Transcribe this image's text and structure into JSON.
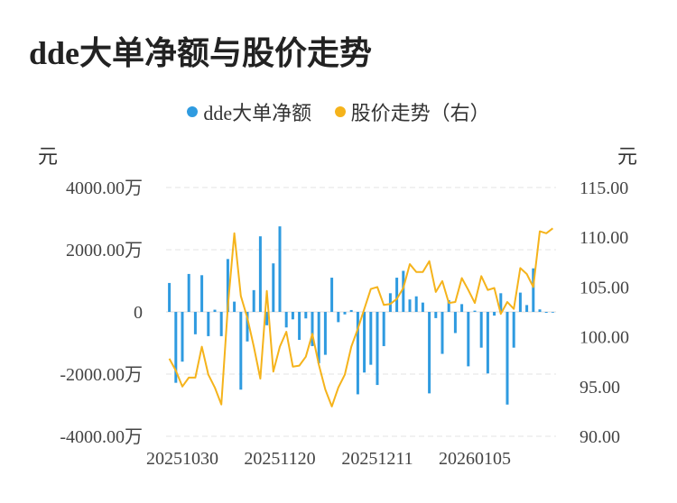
{
  "title": "dde大单净额与股价走势",
  "legend": {
    "items": [
      {
        "label": "dde大单净额",
        "color": "#2f9be0"
      },
      {
        "label": "股价走势（右）",
        "color": "#f5b31b"
      }
    ]
  },
  "units": {
    "left": "元",
    "right": "元"
  },
  "chart_data": {
    "type": "bar+line",
    "x": [
      "20251028",
      "20251029",
      "20251030",
      "20251031",
      "20251103",
      "20251104",
      "20251105",
      "20251106",
      "20251107",
      "20251110",
      "20251111",
      "20251112",
      "20251113",
      "20251114",
      "20251117",
      "20251118",
      "20251119",
      "20251120",
      "20251121",
      "20251124",
      "20251125",
      "20251126",
      "20251127",
      "20251128",
      "20251201",
      "20251202",
      "20251203",
      "20251204",
      "20251205",
      "20251208",
      "20251209",
      "20251210",
      "20251211",
      "20251212",
      "20251215",
      "20251216",
      "20251217",
      "20251218",
      "20251219",
      "20251222",
      "20251223",
      "20251224",
      "20251225",
      "20251226",
      "20251229",
      "20251230",
      "20251231",
      "20260101",
      "20260102",
      "20260105",
      "20260106",
      "20260107",
      "20260108",
      "20260109",
      "20260112",
      "20260113",
      "20260114",
      "20260115",
      "20260116",
      "20260119"
    ],
    "x_tick_labels": [
      "20251030",
      "20251120",
      "20251211",
      "20260105"
    ],
    "x_tick_index": [
      2,
      17,
      32,
      47
    ],
    "series": [
      {
        "name": "dde大单净额",
        "axis": "left",
        "kind": "bar",
        "color": "#2f9be0",
        "values": [
          930,
          -2280,
          -1600,
          1220,
          -720,
          1180,
          -780,
          70,
          -780,
          1700,
          330,
          -2500,
          -950,
          700,
          2430,
          -430,
          1560,
          2750,
          -500,
          -240,
          -900,
          -210,
          -1100,
          -1650,
          -1380,
          1100,
          -330,
          -80,
          60,
          -2650,
          -1950,
          -1700,
          -2350,
          -1100,
          600,
          1100,
          1320,
          400,
          500,
          300,
          -2620,
          -200,
          -1350,
          380,
          -680,
          250,
          -1750,
          40,
          -1150,
          -1980,
          -120,
          600,
          -2980,
          -1150,
          620,
          220,
          1400,
          80,
          -30,
          0
        ]
      },
      {
        "name": "股价走势（右）",
        "axis": "right",
        "kind": "line",
        "color": "#f5b31b",
        "values": [
          97.8,
          96.6,
          95.0,
          95.9,
          95.9,
          99.0,
          96.2,
          94.9,
          93.2,
          103.0,
          110.4,
          104.1,
          101.9,
          99.0,
          95.8,
          104.6,
          96.5,
          99.0,
          100.5,
          97.0,
          97.1,
          98.0,
          100.3,
          97.2,
          94.7,
          93.0,
          94.9,
          96.2,
          99.0,
          100.8,
          102.8,
          104.8,
          105.0,
          103.2,
          103.3,
          103.8,
          104.9,
          107.3,
          106.5,
          106.5,
          107.6,
          104.5,
          105.6,
          103.4,
          103.5,
          105.9,
          104.7,
          103.4,
          106.1,
          104.7,
          104.9,
          102.3,
          103.5,
          102.8,
          106.9,
          106.3,
          105.0,
          110.6,
          110.4,
          110.9
        ]
      }
    ],
    "y_left": {
      "ticks": [
        "4000.00万",
        "2000.00万",
        "0",
        "-2000.00万",
        "-4000.00万"
      ],
      "min": -4000,
      "max": 4000
    },
    "y_right": {
      "ticks": [
        "115.00",
        "110.00",
        "105.00",
        "100.00",
        "95.00",
        "90.00"
      ],
      "min": 90,
      "max": 115
    },
    "grid": true,
    "legend_position": "top-center"
  }
}
